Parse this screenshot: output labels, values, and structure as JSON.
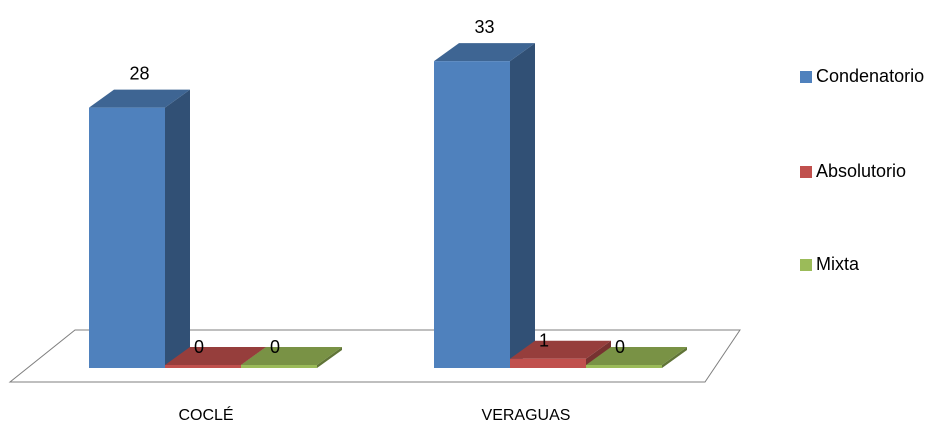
{
  "chart_data": {
    "type": "bar",
    "categories": [
      "COCLÉ",
      "VERAGUAS"
    ],
    "series": [
      {
        "name": "Condenatorio",
        "values": [
          28,
          33
        ],
        "color": "#4F81BD"
      },
      {
        "name": "Absolutorio",
        "values": [
          0,
          1
        ],
        "color": "#C0504D"
      },
      {
        "name": "Mixta",
        "values": [
          0,
          0
        ],
        "color": "#9BBB59"
      }
    ],
    "data_labels": true,
    "three_d": true,
    "legend_position": "right",
    "grid": false,
    "ylim": [
      0,
      33
    ]
  }
}
